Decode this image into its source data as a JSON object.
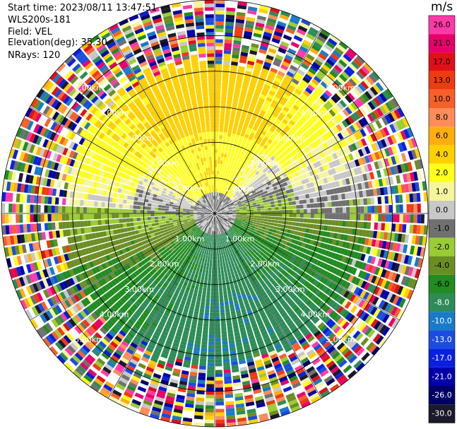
{
  "header": {
    "start_time": "Start time: 2023/08/11 13:47:51",
    "instrument": "WLS200s-181",
    "field": "Field: VEL",
    "elevation": "Elevation(deg): 35.30",
    "nrays": "NRays: 120"
  },
  "colorbar": {
    "unit": "m/s",
    "ticks": [
      "26.0",
      "21.0",
      "17.0",
      "13.0",
      "10.0",
      "8.0",
      "6.0",
      "4.0",
      "2.0",
      "1.0",
      "0.0",
      "-1.0",
      "-2.0",
      "-4.0",
      "-6.0",
      "-8.0",
      "-10.0",
      "-13.0",
      "-17.0",
      "-21.0",
      "-26.0",
      "-30.0"
    ],
    "colors": [
      "#ff3aa8",
      "#e8006a",
      "#e0101a",
      "#f03a10",
      "#f8602a",
      "#ff8c5a",
      "#ffae10",
      "#ffd000",
      "#ffff1e",
      "#f5f5a0",
      "#c8c8c8",
      "#707070",
      "#9acd32",
      "#6b8e23",
      "#228b22",
      "#2e8b57",
      "#1a7ac8",
      "#1a4ce0",
      "#0a20e0",
      "#0000a8",
      "#000066",
      "#1a1a2a"
    ]
  },
  "chart_data": {
    "type": "ppi",
    "field": "VEL",
    "units": "m/s",
    "n_rays": 120,
    "range_max_km": 6.0,
    "range_rings_km": [
      1.0,
      2.0,
      3.0,
      4.0,
      5.0
    ],
    "ring_labels": [
      "1.00km",
      "2.00km",
      "3.00km",
      "4.00km",
      "5.00km"
    ],
    "spokes_deg": [
      0,
      30,
      60,
      90,
      120,
      150,
      180,
      210,
      240,
      270,
      300,
      330
    ],
    "vmin": -30.0,
    "vmax": 26.0,
    "approx_sector_values": [
      {
        "sector": "north (azimuth 300-60)",
        "value_mps": 4.0
      },
      {
        "sector": "east (azimuth 60-120)",
        "value_mps": -1.0
      },
      {
        "sector": "south (azimuth 120-240)",
        "value_mps": -6.0
      },
      {
        "sector": "west (azimuth 240-300)",
        "value_mps": 0.0
      }
    ],
    "noise_beyond_km": 4.3
  }
}
